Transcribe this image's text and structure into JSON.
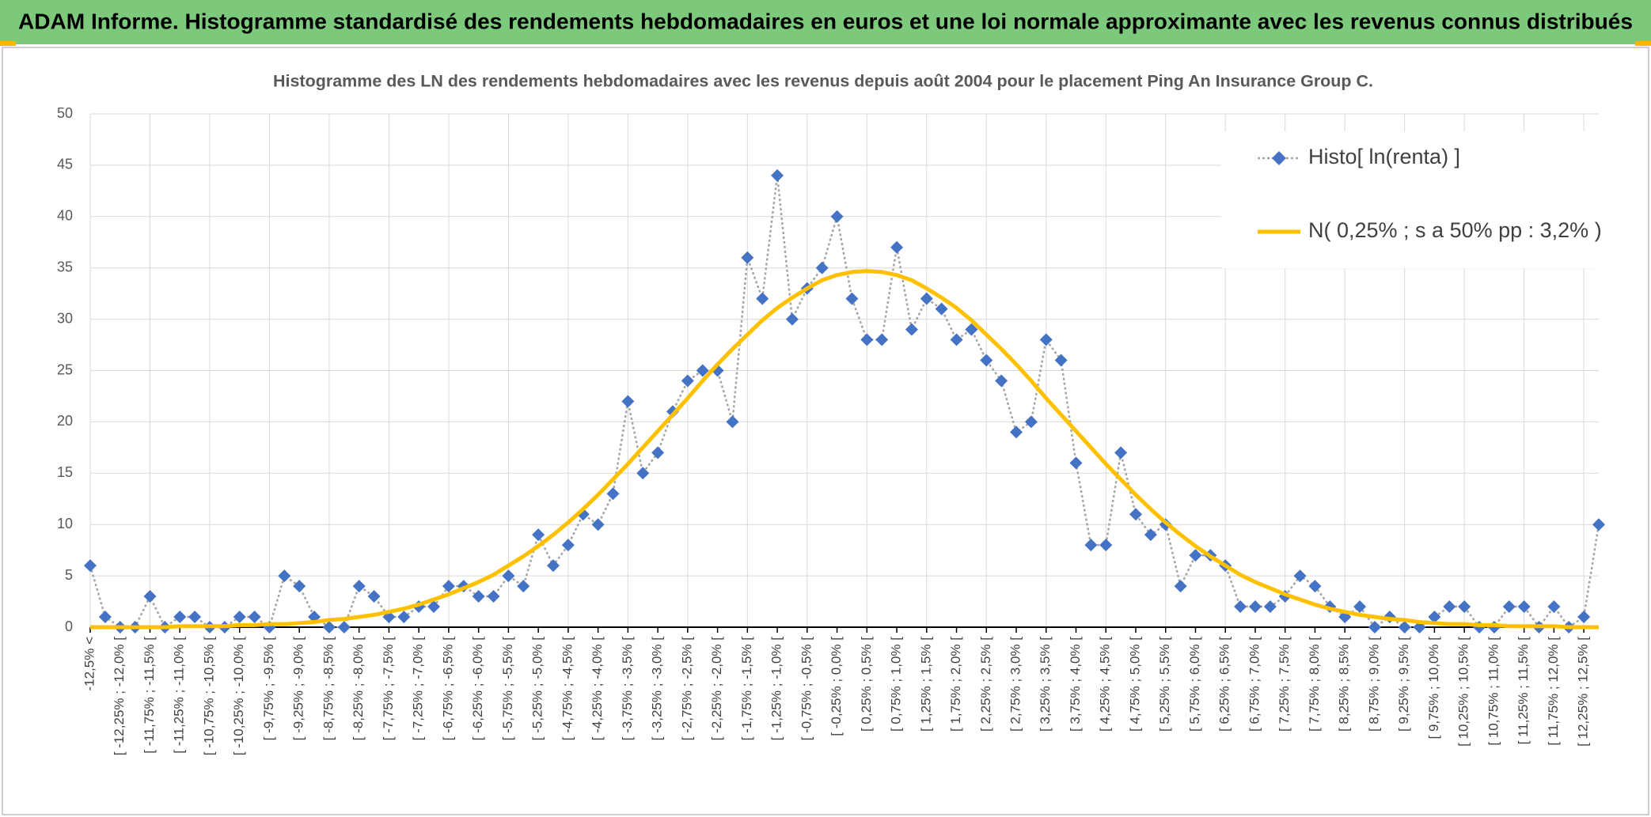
{
  "header": {
    "title": "ADAM Informe. Histogramme standardisé des rendements hebdomadaires en euros et une loi normale approximante avec les revenus connus distribués"
  },
  "chart_data": {
    "type": "line",
    "title": "Histogramme des LN des rendements hebdomadaires avec les revenus depuis août 2004 pour le placement Ping An Insurance Group C.",
    "categories": [
      "-12,5% <",
      null,
      "[ -12,25% ; -12,0% [",
      null,
      "[ -11,75% ; -11,5% [",
      null,
      "[ -11,25% ; -11,0% [",
      null,
      "[ -10,75% ; -10,5% [",
      null,
      "[ -10,25% ; -10,0% [",
      null,
      "[ -9,75% ; -9,5% [",
      null,
      "[ -9,25% ; -9,0% [",
      null,
      "[ -8,75% ; -8,5% [",
      null,
      "[ -8,25% ; -8,0% [",
      null,
      "[ -7,75% ; -7,5% [",
      null,
      "[ -7,25% ; -7,0% [",
      null,
      "[ -6,75% ; -6,5% [",
      null,
      "[ -6,25% ; -6,0% [",
      null,
      "[ -5,75% ; -5,5% [",
      null,
      "[ -5,25% ; -5,0% [",
      null,
      "[ -4,75% ; -4,5% [",
      null,
      "[ -4,25% ; -4,0% [",
      null,
      "[ -3,75% ; -3,5% [",
      null,
      "[ -3,25% ; -3,0% [",
      null,
      "[ -2,75% ; -2,5% [",
      null,
      "[ -2,25% ; -2,0% [",
      null,
      "[ -1,75% ; -1,5% [",
      null,
      "[ -1,25% ; -1,0% [",
      null,
      "[ -0,75% ; -0,5% [",
      null,
      "[ -0,25% ; 0,0% [",
      null,
      "[ 0,25% ; 0,5% [",
      null,
      "[ 0,75% ; 1,0% [",
      null,
      "[ 1,25% ; 1,5% [",
      null,
      "[ 1,75% ; 2,0% [",
      null,
      "[ 2,25% ; 2,5% [",
      null,
      "[ 2,75% ; 3,0% [",
      null,
      "[ 3,25% ; 3,5% [",
      null,
      "[ 3,75% ; 4,0% [",
      null,
      "[ 4,25% ; 4,5% [",
      null,
      "[ 4,75% ; 5,0% [",
      null,
      "[ 5,25% ; 5,5% [",
      null,
      "[ 5,75% ; 6,0% [",
      null,
      "[ 6,25% ; 6,5% [",
      null,
      "[ 6,75% ; 7,0% [",
      null,
      "[ 7,25% ; 7,5% [",
      null,
      "[ 7,75% ; 8,0% [",
      null,
      "[ 8,25% ; 8,5% [",
      null,
      "[ 8,75% ; 9,0% [",
      null,
      "[ 9,25% ; 9,5% [",
      null,
      "[ 9,75% ; 10,0% [",
      null,
      "[ 10,25% ; 10,5% [",
      null,
      "[ 10,75% ; 11,0% [",
      null,
      "[ 11,25% ; 11,5% [",
      null,
      "[ 11,75% ; 12,0% [",
      null,
      "[ 12,25% ; 12,5% [",
      null
    ],
    "series": [
      {
        "name": "Histo[ ln(renta) ]",
        "color": "#4472c4",
        "line_color": "#a5a5a5",
        "marker": "diamond",
        "values": [
          6,
          1,
          0,
          0,
          3,
          0,
          1,
          1,
          0,
          0,
          1,
          1,
          0,
          5,
          4,
          1,
          0,
          0,
          4,
          3,
          1,
          1,
          2,
          2,
          4,
          4,
          3,
          3,
          5,
          4,
          9,
          6,
          8,
          11,
          10,
          13,
          22,
          15,
          17,
          21,
          24,
          25,
          25,
          20,
          36,
          32,
          44,
          30,
          33,
          35,
          40,
          32,
          28,
          28,
          37,
          29,
          32,
          31,
          28,
          29,
          26,
          24,
          19,
          20,
          28,
          26,
          16,
          8,
          8,
          17,
          11,
          9,
          10,
          4,
          7,
          7,
          6,
          2,
          2,
          2,
          3,
          5,
          4,
          2,
          1,
          2,
          0,
          1,
          0,
          0,
          1,
          2,
          2,
          0,
          0,
          2,
          2,
          0,
          2,
          0,
          1,
          10
        ]
      },
      {
        "name": "N( 0,25% ; s a 50% pp : 3,2% )",
        "color": "#ffc000",
        "values": [
          0.0,
          0.0,
          0.0,
          0.0,
          0.0,
          0.0,
          0.1,
          0.1,
          0.1,
          0.1,
          0.2,
          0.2,
          0.3,
          0.3,
          0.4,
          0.5,
          0.7,
          0.8,
          1.0,
          1.2,
          1.5,
          1.8,
          2.2,
          2.7,
          3.2,
          3.8,
          4.4,
          5.1,
          6.0,
          6.9,
          7.9,
          9.0,
          10.2,
          11.5,
          12.9,
          14.4,
          15.9,
          17.5,
          19.1,
          20.7,
          22.3,
          24.0,
          25.6,
          27.1,
          28.5,
          29.9,
          31.1,
          32.1,
          33.0,
          33.8,
          34.3,
          34.6,
          34.7,
          34.6,
          34.3,
          33.8,
          33.0,
          32.1,
          31.1,
          29.9,
          28.5,
          27.1,
          25.6,
          24.0,
          22.3,
          20.7,
          19.1,
          17.5,
          15.9,
          14.4,
          12.9,
          11.5,
          10.2,
          9.0,
          7.9,
          6.9,
          6.0,
          5.1,
          4.4,
          3.8,
          3.2,
          2.7,
          2.2,
          1.8,
          1.5,
          1.2,
          1.0,
          0.8,
          0.7,
          0.5,
          0.4,
          0.3,
          0.3,
          0.2,
          0.2,
          0.1,
          0.1,
          0.1,
          0.1,
          0.0,
          0.0,
          0.0
        ]
      }
    ],
    "ylim": [
      0,
      50
    ],
    "yticks": [
      0,
      5,
      10,
      15,
      20,
      25,
      30,
      35,
      40,
      45,
      50
    ],
    "grid": true,
    "legend": "upper right"
  }
}
